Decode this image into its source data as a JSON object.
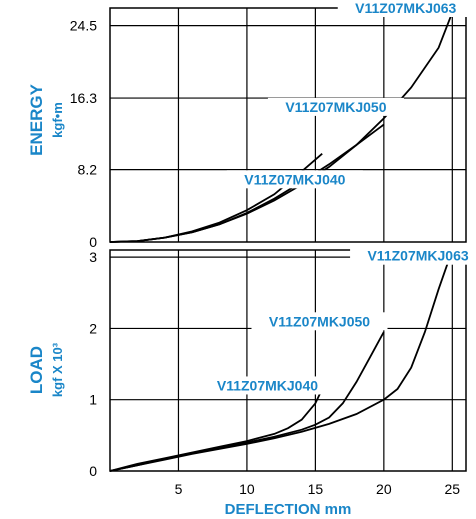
{
  "chart_data": [
    {
      "type": "line",
      "ylabel": "ENERGY",
      "yunit": "kgf•m",
      "xlim": [
        0,
        26
      ],
      "ylim": [
        0,
        26.5
      ],
      "x_gridlines": [
        5,
        10,
        15,
        20,
        25
      ],
      "yticks": [
        {
          "value": 0,
          "label": "0"
        },
        {
          "value": 8.2,
          "label": "8.2"
        },
        {
          "value": 16.3,
          "label": "16.3"
        },
        {
          "value": 24.5,
          "label": "24.5"
        }
      ],
      "grid": true,
      "series": [
        {
          "name": "V11Z07MKJ040",
          "color": "#000000",
          "x": [
            0,
            2,
            4,
            6,
            8,
            10,
            12,
            14,
            15.5
          ],
          "y": [
            0,
            0.1,
            0.5,
            1.2,
            2.2,
            3.6,
            5.4,
            8.0,
            10.0
          ]
        },
        {
          "name": "V11Z07MKJ050",
          "color": "#000000",
          "x": [
            0,
            2,
            4,
            6,
            8,
            10,
            12,
            14,
            16,
            18,
            20
          ],
          "y": [
            0,
            0.1,
            0.5,
            1.1,
            2.0,
            3.3,
            4.9,
            6.8,
            8.8,
            11.0,
            13.3
          ]
        },
        {
          "name": "V11Z07MKJ063",
          "color": "#000000",
          "x": [
            0,
            2,
            4,
            6,
            8,
            10,
            12,
            14,
            16,
            18,
            20,
            22,
            24,
            25
          ],
          "y": [
            0,
            0.1,
            0.5,
            1.1,
            2.0,
            3.2,
            4.7,
            6.5,
            8.5,
            11.0,
            14.0,
            17.5,
            22.0,
            26.0
          ]
        }
      ]
    },
    {
      "type": "line",
      "xlabel": "DEFLECTION mm",
      "ylabel": "LOAD",
      "yunit": "kgf X 10³",
      "xlim": [
        0,
        26
      ],
      "ylim": [
        0,
        3.1
      ],
      "xticks": [
        5,
        10,
        15,
        20,
        25
      ],
      "yticks": [
        0,
        1,
        2,
        3
      ],
      "grid": true,
      "series": [
        {
          "name": "V11Z07MKJ040",
          "color": "#000000",
          "x": [
            0,
            2,
            4,
            6,
            8,
            10,
            12,
            13,
            14,
            15,
            15.5
          ],
          "y": [
            0,
            0.1,
            0.18,
            0.26,
            0.34,
            0.42,
            0.52,
            0.6,
            0.72,
            0.95,
            1.15
          ]
        },
        {
          "name": "V11Z07MKJ050",
          "color": "#000000",
          "x": [
            0,
            2,
            4,
            6,
            8,
            10,
            12,
            14,
            15,
            16,
            17,
            18,
            19,
            20
          ],
          "y": [
            0,
            0.08,
            0.17,
            0.25,
            0.32,
            0.4,
            0.48,
            0.58,
            0.65,
            0.75,
            0.95,
            1.25,
            1.6,
            1.95
          ]
        },
        {
          "name": "V11Z07MKJ063",
          "color": "#000000",
          "x": [
            0,
            2,
            4,
            6,
            8,
            10,
            12,
            14,
            16,
            18,
            20,
            21,
            22,
            23,
            24,
            25
          ],
          "y": [
            0,
            0.08,
            0.16,
            0.24,
            0.31,
            0.38,
            0.46,
            0.55,
            0.66,
            0.8,
            1.0,
            1.15,
            1.45,
            1.95,
            2.55,
            3.1
          ]
        }
      ]
    }
  ]
}
